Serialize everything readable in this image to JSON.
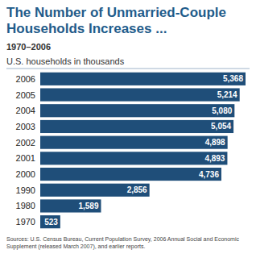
{
  "chart_data": {
    "type": "bar",
    "orientation": "horizontal",
    "title": "The Number of Unmarried-Couple Households Increases ...",
    "subtitle": "1970–2006",
    "xlabel": "U.S. households in thousands",
    "source": "Sources: U.S. Census Bureau, Current Population Survey, 2006 Annual Social and Economic Supplement (released March 2007), and earlier reports.",
    "categories": [
      "2006",
      "2005",
      "2004",
      "2003",
      "2002",
      "2001",
      "2000",
      "1990",
      "1980",
      "1970"
    ],
    "values": [
      5368,
      5214,
      5080,
      5054,
      4898,
      4893,
      4736,
      2856,
      1589,
      523
    ],
    "value_labels": [
      "5,368",
      "5,214",
      "5,080",
      "5,054",
      "4,898",
      "4,893",
      "4,736",
      "2,856",
      "1,589",
      "523"
    ],
    "color": "#1f4e79",
    "data_labels": true
  }
}
